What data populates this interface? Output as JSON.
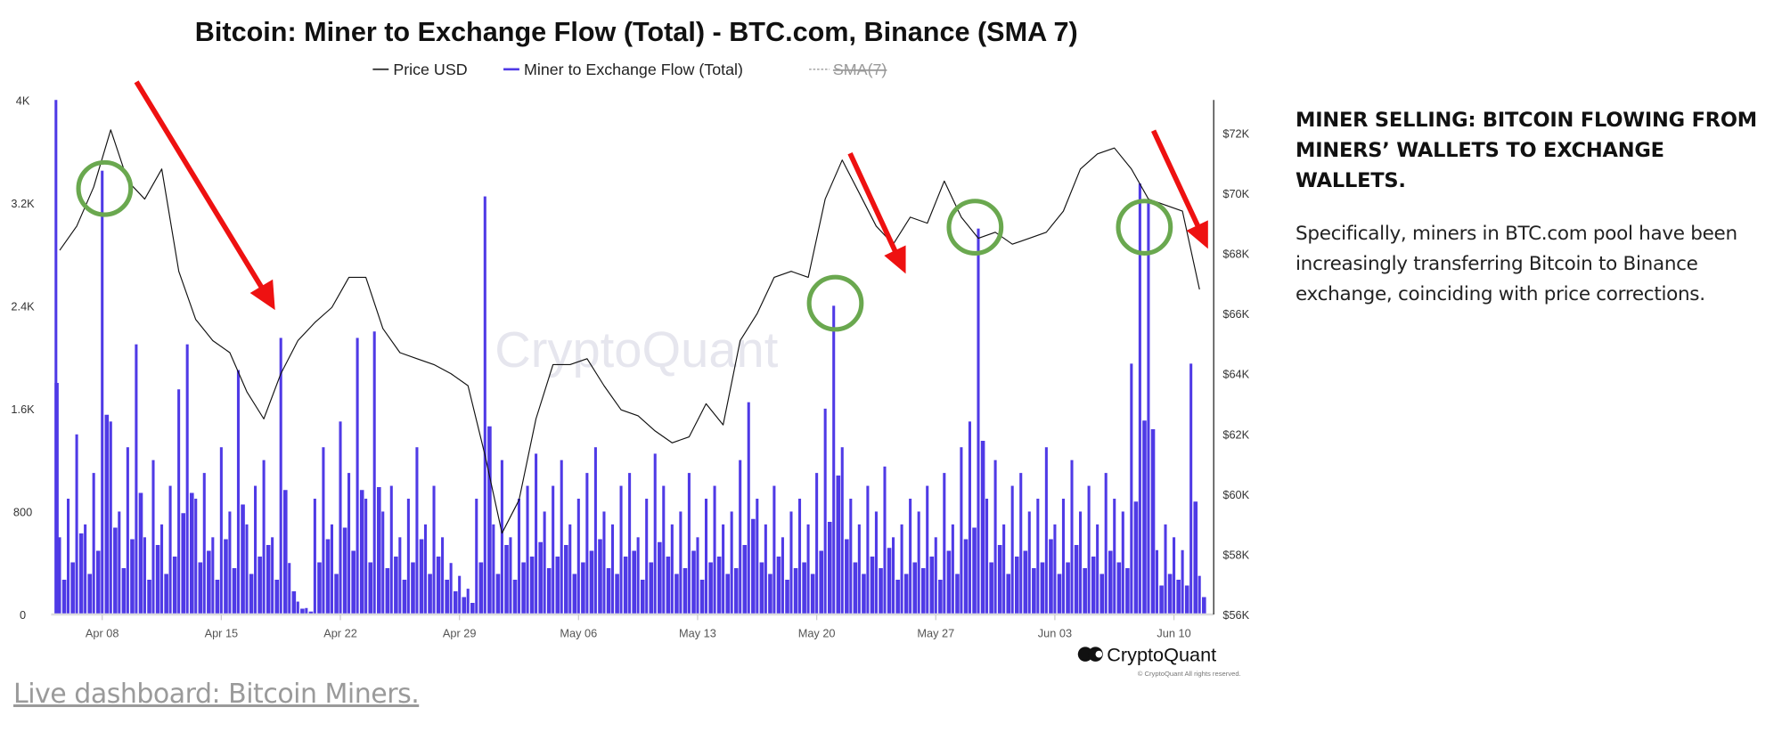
{
  "chart_data": {
    "type": "bar+line",
    "title": "Bitcoin: Miner to Exchange Flow (Total) - BTC.com, Binance (SMA 7)",
    "legend": {
      "placement": "top-center",
      "items": [
        {
          "label": "Price USD",
          "color": "#222222",
          "hidden": false
        },
        {
          "label": "Miner to Exchange Flow (Total)",
          "color": "#4f3ae6",
          "hidden": false
        },
        {
          "label": "SMA(7)",
          "color": "#9a9a9a",
          "hidden": true
        }
      ]
    },
    "left_axis": {
      "ylim": [
        0,
        4000
      ],
      "ticks": [
        "0",
        "800",
        "1.6K",
        "2.4K",
        "3.2K",
        "4K"
      ]
    },
    "right_axis": {
      "ylim": [
        56000,
        73000
      ],
      "ticks": [
        "$56K",
        "$58K",
        "$60K",
        "$62K",
        "$64K",
        "$66K",
        "$68K",
        "$70K",
        "$72K"
      ]
    },
    "x_axis": {
      "ticks": [
        "Apr 08",
        "Apr 15",
        "Apr 22",
        "Apr 29",
        "May 06",
        "May 13",
        "May 20",
        "May 27",
        "Jun 03",
        "Jun 10"
      ]
    },
    "grid": false,
    "watermark": "CryptoQuant",
    "series": [
      {
        "name": "Price USD",
        "type": "line",
        "points": [
          [
            "Apr 05",
            68100
          ],
          [
            "Apr 06",
            68900
          ],
          [
            "Apr 07",
            70200
          ],
          [
            "Apr 08",
            72100
          ],
          [
            "Apr 09",
            70400
          ],
          [
            "Apr 10",
            69800
          ],
          [
            "Apr 11",
            70800
          ],
          [
            "Apr 12",
            67400
          ],
          [
            "Apr 13",
            65800
          ],
          [
            "Apr 14",
            65100
          ],
          [
            "Apr 15",
            64700
          ],
          [
            "Apr 16",
            63400
          ],
          [
            "Apr 17",
            62500
          ],
          [
            "Apr 18",
            64000
          ],
          [
            "Apr 19",
            65100
          ],
          [
            "Apr 20",
            65700
          ],
          [
            "Apr 21",
            66200
          ],
          [
            "Apr 22",
            67200
          ],
          [
            "Apr 23",
            67200
          ],
          [
            "Apr 24",
            65500
          ],
          [
            "Apr 25",
            64700
          ],
          [
            "Apr 26",
            64500
          ],
          [
            "Apr 27",
            64300
          ],
          [
            "Apr 28",
            64000
          ],
          [
            "Apr 29",
            63600
          ],
          [
            "Apr 30",
            61300
          ],
          [
            "May 01",
            58700
          ],
          [
            "May 02",
            59800
          ],
          [
            "May 03",
            62500
          ],
          [
            "May 04",
            64300
          ],
          [
            "May 05",
            64300
          ],
          [
            "May 06",
            64500
          ],
          [
            "May 07",
            63600
          ],
          [
            "May 08",
            62800
          ],
          [
            "May 09",
            62600
          ],
          [
            "May 10",
            62100
          ],
          [
            "May 11",
            61700
          ],
          [
            "May 12",
            61900
          ],
          [
            "May 13",
            63000
          ],
          [
            "May 14",
            62300
          ],
          [
            "May 15",
            65100
          ],
          [
            "May 16",
            66000
          ],
          [
            "May 17",
            67200
          ],
          [
            "May 18",
            67400
          ],
          [
            "May 19",
            67200
          ],
          [
            "May 20",
            69800
          ],
          [
            "May 21",
            71100
          ],
          [
            "May 22",
            70000
          ],
          [
            "May 23",
            68900
          ],
          [
            "May 24",
            68300
          ],
          [
            "May 25",
            69200
          ],
          [
            "May 26",
            69000
          ],
          [
            "May 27",
            70400
          ],
          [
            "May 28",
            69200
          ],
          [
            "May 29",
            68500
          ],
          [
            "May 30",
            68700
          ],
          [
            "May 31",
            68300
          ],
          [
            "Jun 01",
            68500
          ],
          [
            "Jun 02",
            68700
          ],
          [
            "Jun 03",
            69400
          ],
          [
            "Jun 04",
            70800
          ],
          [
            "Jun 05",
            71300
          ],
          [
            "Jun 06",
            71500
          ],
          [
            "Jun 07",
            70800
          ],
          [
            "Jun 08",
            69800
          ],
          [
            "Jun 09",
            69600
          ],
          [
            "Jun 10",
            69400
          ],
          [
            "Jun 11",
            66800
          ]
        ]
      },
      {
        "name": "Miner to Exchange Flow (Total)",
        "type": "bar",
        "points": [
          [
            "Apr 05 00:00",
            4000
          ],
          [
            "Apr 05 12:00",
            600
          ],
          [
            "Apr 06 00:00",
            900
          ],
          [
            "Apr 06 12:00",
            1400
          ],
          [
            "Apr 07 00:00",
            700
          ],
          [
            "Apr 07 12:00",
            1100
          ],
          [
            "Apr 08 00:00",
            3450
          ],
          [
            "Apr 08 12:00",
            1500
          ],
          [
            "Apr 09 00:00",
            800
          ],
          [
            "Apr 09 12:00",
            1300
          ],
          [
            "Apr 10 00:00",
            2100
          ],
          [
            "Apr 10 12:00",
            600
          ],
          [
            "Apr 11 00:00",
            1200
          ],
          [
            "Apr 11 12:00",
            700
          ],
          [
            "Apr 12 00:00",
            1000
          ],
          [
            "Apr 12 12:00",
            1750
          ],
          [
            "Apr 13 00:00",
            2100
          ],
          [
            "Apr 13 12:00",
            900
          ],
          [
            "Apr 14 00:00",
            1100
          ],
          [
            "Apr 14 12:00",
            600
          ],
          [
            "Apr 15 00:00",
            1300
          ],
          [
            "Apr 15 12:00",
            800
          ],
          [
            "Apr 16 00:00",
            1900
          ],
          [
            "Apr 16 12:00",
            700
          ],
          [
            "Apr 17 00:00",
            1000
          ],
          [
            "Apr 17 12:00",
            1200
          ],
          [
            "Apr 18 00:00",
            600
          ],
          [
            "Apr 18 12:00",
            2150
          ],
          [
            "Apr 19 00:00",
            400
          ],
          [
            "Apr 19 12:00",
            100
          ],
          [
            "Apr 20 00:00",
            50
          ],
          [
            "Apr 20 12:00",
            900
          ],
          [
            "Apr 21 00:00",
            1300
          ],
          [
            "Apr 21 12:00",
            700
          ],
          [
            "Apr 22 00:00",
            1500
          ],
          [
            "Apr 22 12:00",
            1100
          ],
          [
            "Apr 23 00:00",
            2150
          ],
          [
            "Apr 23 12:00",
            900
          ],
          [
            "Apr 24 00:00",
            2200
          ],
          [
            "Apr 24 12:00",
            800
          ],
          [
            "Apr 25 00:00",
            1000
          ],
          [
            "Apr 25 12:00",
            600
          ],
          [
            "Apr 26 00:00",
            900
          ],
          [
            "Apr 26 12:00",
            1300
          ],
          [
            "Apr 27 00:00",
            700
          ],
          [
            "Apr 27 12:00",
            1000
          ],
          [
            "Apr 28 00:00",
            600
          ],
          [
            "Apr 28 12:00",
            400
          ],
          [
            "Apr 29 00:00",
            300
          ],
          [
            "Apr 29 12:00",
            200
          ],
          [
            "Apr 30 00:00",
            900
          ],
          [
            "Apr 30 12:00",
            3250
          ],
          [
            "May 01 00:00",
            700
          ],
          [
            "May 01 12:00",
            1200
          ],
          [
            "May 02 00:00",
            600
          ],
          [
            "May 02 12:00",
            900
          ],
          [
            "May 03 00:00",
            1000
          ],
          [
            "May 03 12:00",
            1250
          ],
          [
            "May 04 00:00",
            800
          ],
          [
            "May 04 12:00",
            1000
          ],
          [
            "May 05 00:00",
            1200
          ],
          [
            "May 05 12:00",
            700
          ],
          [
            "May 06 00:00",
            900
          ],
          [
            "May 06 12:00",
            1100
          ],
          [
            "May 07 00:00",
            1300
          ],
          [
            "May 07 12:00",
            800
          ],
          [
            "May 08 00:00",
            700
          ],
          [
            "May 08 12:00",
            1000
          ],
          [
            "May 09 00:00",
            1100
          ],
          [
            "May 09 12:00",
            600
          ],
          [
            "May 10 00:00",
            900
          ],
          [
            "May 10 12:00",
            1250
          ],
          [
            "May 11 00:00",
            1000
          ],
          [
            "May 11 12:00",
            700
          ],
          [
            "May 12 00:00",
            800
          ],
          [
            "May 12 12:00",
            1100
          ],
          [
            "May 13 00:00",
            600
          ],
          [
            "May 13 12:00",
            900
          ],
          [
            "May 14 00:00",
            1000
          ],
          [
            "May 14 12:00",
            700
          ],
          [
            "May 15 00:00",
            800
          ],
          [
            "May 15 12:00",
            1200
          ],
          [
            "May 16 00:00",
            1650
          ],
          [
            "May 16 12:00",
            900
          ],
          [
            "May 17 00:00",
            700
          ],
          [
            "May 17 12:00",
            1000
          ],
          [
            "May 18 00:00",
            600
          ],
          [
            "May 18 12:00",
            800
          ],
          [
            "May 19 00:00",
            900
          ],
          [
            "May 19 12:00",
            700
          ],
          [
            "May 20 00:00",
            1100
          ],
          [
            "May 20 12:00",
            1600
          ],
          [
            "May 21 00:00",
            2400
          ],
          [
            "May 21 12:00",
            1300
          ],
          [
            "May 22 00:00",
            900
          ],
          [
            "May 22 12:00",
            700
          ],
          [
            "May 23 00:00",
            1000
          ],
          [
            "May 23 12:00",
            800
          ],
          [
            "May 24 00:00",
            1150
          ],
          [
            "May 24 12:00",
            600
          ],
          [
            "May 25 00:00",
            700
          ],
          [
            "May 25 12:00",
            900
          ],
          [
            "May 26 00:00",
            800
          ],
          [
            "May 26 12:00",
            1000
          ],
          [
            "May 27 00:00",
            600
          ],
          [
            "May 27 12:00",
            1100
          ],
          [
            "May 28 00:00",
            700
          ],
          [
            "May 28 12:00",
            1300
          ],
          [
            "May 29 00:00",
            1500
          ],
          [
            "May 29 12:00",
            3000
          ],
          [
            "May 30 00:00",
            900
          ],
          [
            "May 30 12:00",
            1200
          ],
          [
            "May 31 00:00",
            700
          ],
          [
            "May 31 12:00",
            1000
          ],
          [
            "Jun 01 00:00",
            1100
          ],
          [
            "Jun 01 12:00",
            800
          ],
          [
            "Jun 02 00:00",
            900
          ],
          [
            "Jun 02 12:00",
            1300
          ],
          [
            "Jun 03 00:00",
            700
          ],
          [
            "Jun 03 12:00",
            900
          ],
          [
            "Jun 04 00:00",
            1200
          ],
          [
            "Jun 04 12:00",
            800
          ],
          [
            "Jun 05 00:00",
            1000
          ],
          [
            "Jun 05 12:00",
            700
          ],
          [
            "Jun 06 00:00",
            1100
          ],
          [
            "Jun 06 12:00",
            900
          ],
          [
            "Jun 07 00:00",
            800
          ],
          [
            "Jun 07 12:00",
            1950
          ],
          [
            "Jun 08 00:00",
            3350
          ],
          [
            "Jun 08 12:00",
            3200
          ],
          [
            "Jun 09 00:00",
            500
          ],
          [
            "Jun 09 12:00",
            700
          ],
          [
            "Jun 10 00:00",
            600
          ],
          [
            "Jun 10 12:00",
            500
          ],
          [
            "Jun 11 00:00",
            1950
          ],
          [
            "Jun 11 12:00",
            300
          ]
        ]
      }
    ],
    "annotations": {
      "circle_color": "#6aa84f",
      "arrow_color": "#ee1111"
    }
  },
  "branding": {
    "logo_text": "CryptoQuant",
    "copyright": "© CryptoQuant All rights reserved."
  },
  "side_panel": {
    "heading": "MINER SELLING: BITCOIN FLOWING FROM MINERS’ WALLETS TO EXCHANGE WALLETS.",
    "body": "Specifically, miners in BTC.com pool have been increasingly transferring Bitcoin to Binance exchange, coinciding with price corrections."
  },
  "footer_link": "Live dashboard: Bitcoin Miners."
}
